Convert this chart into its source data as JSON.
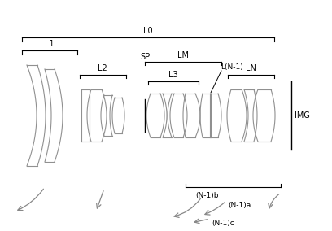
{
  "background_color": "#ffffff",
  "line_color": "#888888",
  "text_color": "#000000",
  "dashed_color": "#aaaaaa",
  "figsize": [
    4.08,
    2.84
  ],
  "dpi": 100,
  "xlim": [
    0,
    408
  ],
  "ylim": [
    -142,
    142
  ]
}
